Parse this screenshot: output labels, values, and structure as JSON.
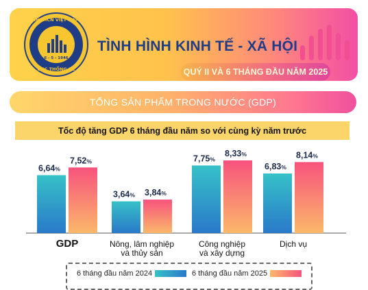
{
  "header": {
    "logo_top_text": "CHXHCN VIỆT NAM",
    "logo_date_text": "6 - 5 - 1946",
    "logo_bottom_text": "CỤC THỐNG KÊ",
    "title": "TÌNH HÌNH KINH TẾ - XÃ HỘI",
    "subtitle": "QUÝ II VÀ 6 THÁNG ĐẦU NĂM 2025",
    "icon": "bar-chart-icon",
    "colors": {
      "title": "#1f3c86",
      "gradient_start": "#ffd24a",
      "gradient_end": "#f24fa6"
    }
  },
  "section": {
    "banner": "TỔNG SẢN PHẨM TRONG NƯỚC (GDP)"
  },
  "chart_data": {
    "type": "bar",
    "title": "Tốc độ tăng GDP 6 tháng đầu năm so với cùng kỳ năm trước",
    "categories": [
      [
        "GDP"
      ],
      [
        "Nông, lâm nghiệp",
        "và thủy sản"
      ],
      [
        "Công nghiệp",
        "và xây dựng"
      ],
      [
        "Dịch vụ"
      ]
    ],
    "unit": "%",
    "series": [
      {
        "name": "6 tháng đầu năm 2024",
        "values": [
          6.64,
          3.64,
          7.75,
          6.83
        ],
        "labels": [
          "6,64",
          "3,64",
          "7,75",
          "6,83"
        ],
        "color": "#2bb3c0"
      },
      {
        "name": "6 tháng đầu năm 2025",
        "values": [
          7.52,
          3.84,
          8.33,
          8.14
        ],
        "labels": [
          "7,52",
          "3,84",
          "8,33",
          "8,14"
        ],
        "color": "#f47c6b"
      }
    ],
    "ylim": [
      0,
      8.8
    ],
    "grid": false,
    "legend": "bottom"
  }
}
